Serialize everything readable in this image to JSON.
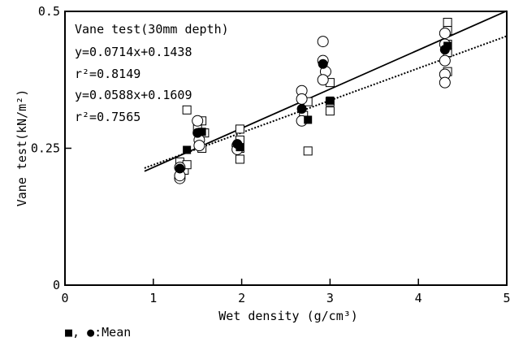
{
  "chart_data": {
    "type": "scatter",
    "title": "",
    "xlabel": "Wet density (g/cm³)",
    "ylabel": "Vane test(kN/m²)",
    "xlim": [
      0,
      5
    ],
    "ylim": [
      0,
      0.5
    ],
    "x_ticks": [
      "0",
      "1",
      "2",
      "3",
      "4",
      "5"
    ],
    "y_ticks": [
      "0",
      "0.25",
      "0.5"
    ],
    "grid": false,
    "annotation": {
      "heading": "Vane test(30mm depth)",
      "lines": [
        "y=0.0714x+0.1438",
        "r²=0.8149",
        "y=0.0588x+0.1609",
        "r²=0.7565"
      ]
    },
    "legend_note": "■, ●:Mean",
    "series": [
      {
        "marker": "open-square",
        "points": [
          [
            1.3,
            0.225
          ],
          [
            1.35,
            0.21
          ],
          [
            1.38,
            0.22
          ],
          [
            1.38,
            0.32
          ],
          [
            1.5,
            0.285
          ],
          [
            1.55,
            0.25
          ],
          [
            1.55,
            0.3
          ],
          [
            1.58,
            0.278
          ],
          [
            1.98,
            0.285
          ],
          [
            1.98,
            0.265
          ],
          [
            1.98,
            0.25
          ],
          [
            1.98,
            0.23
          ],
          [
            2.7,
            0.31
          ],
          [
            2.75,
            0.335
          ],
          [
            2.75,
            0.245
          ],
          [
            3.0,
            0.37
          ],
          [
            3.0,
            0.335
          ],
          [
            3.0,
            0.318
          ],
          [
            4.33,
            0.48
          ],
          [
            4.33,
            0.465
          ],
          [
            4.33,
            0.44
          ],
          [
            4.33,
            0.425
          ],
          [
            4.33,
            0.39
          ]
        ]
      },
      {
        "marker": "open-circle",
        "points": [
          [
            1.3,
            0.195
          ],
          [
            1.3,
            0.2
          ],
          [
            1.3,
            0.215
          ],
          [
            1.5,
            0.3
          ],
          [
            1.52,
            0.265
          ],
          [
            1.52,
            0.255
          ],
          [
            1.95,
            0.255
          ],
          [
            1.95,
            0.248
          ],
          [
            2.68,
            0.355
          ],
          [
            2.68,
            0.34
          ],
          [
            2.68,
            0.3
          ],
          [
            2.92,
            0.445
          ],
          [
            2.92,
            0.41
          ],
          [
            2.95,
            0.39
          ],
          [
            2.92,
            0.375
          ],
          [
            4.3,
            0.46
          ],
          [
            4.3,
            0.44
          ],
          [
            4.3,
            0.41
          ],
          [
            4.3,
            0.385
          ],
          [
            4.3,
            0.37
          ]
        ]
      },
      {
        "marker": "filled-square",
        "points": [
          [
            1.38,
            0.247
          ],
          [
            1.55,
            0.28
          ],
          [
            1.98,
            0.252
          ],
          [
            2.75,
            0.302
          ],
          [
            3.0,
            0.337
          ],
          [
            4.33,
            0.437
          ]
        ]
      },
      {
        "marker": "filled-circle",
        "points": [
          [
            1.3,
            0.213
          ],
          [
            1.5,
            0.278
          ],
          [
            1.95,
            0.258
          ],
          [
            2.68,
            0.322
          ],
          [
            2.92,
            0.404
          ],
          [
            4.3,
            0.43
          ]
        ]
      }
    ],
    "fit_lines": [
      {
        "style": "solid",
        "slope": 0.0714,
        "intercept": 0.1438,
        "x_range": [
          0.9,
          5
        ]
      },
      {
        "style": "dotted",
        "slope": 0.0588,
        "intercept": 0.1609,
        "x_range": [
          0.9,
          5
        ]
      }
    ]
  }
}
